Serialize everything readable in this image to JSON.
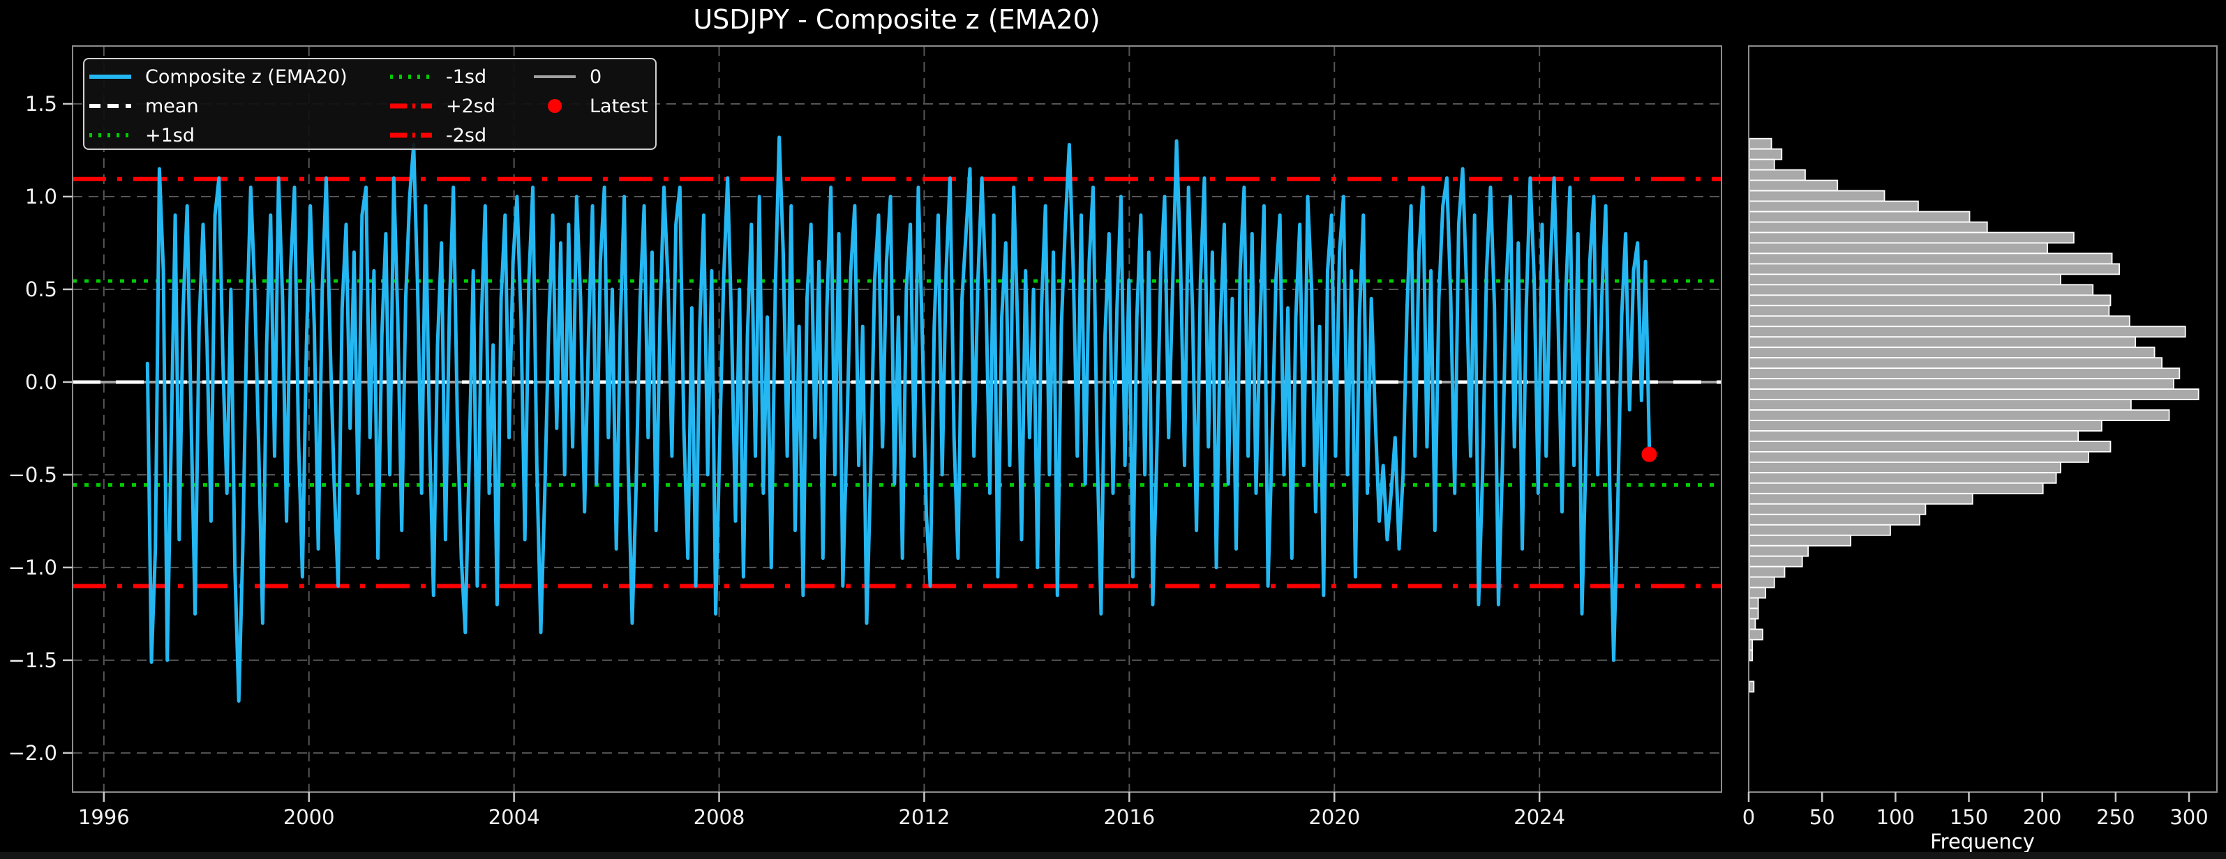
{
  "title": "USDJPY - Composite z (EMA20)",
  "chart_data": {
    "type": "line",
    "main_panel": {
      "xlim": [
        1995.39,
        2027.55
      ],
      "ylim": [
        -2.211,
        1.812
      ],
      "x_ticks": [
        1996,
        2000,
        2004,
        2008,
        2012,
        2016,
        2020,
        2024
      ],
      "x_tick_labels": [
        "1996",
        "2000",
        "2004",
        "2008",
        "2012",
        "2016",
        "2020",
        "2024"
      ],
      "y_ticks": [
        1.5,
        1.0,
        0.5,
        0.0,
        -0.5,
        -1.0,
        -1.5,
        -2.0
      ],
      "y_tick_labels": [
        "1.5",
        "1.0",
        "0.5",
        "0.0",
        "−0.5",
        "−1.0",
        "−1.5",
        "−2.0"
      ],
      "grid": true,
      "ref_lines": {
        "mean": 0.0,
        "plus_1sd": 0.545,
        "minus_1sd": -0.555,
        "plus_2sd": 1.095,
        "minus_2sd": -1.1,
        "zero": 0.0
      },
      "series": {
        "name": "Composite z (EMA20)",
        "t0": 1996.85,
        "dt": 0.0775,
        "values": [
          0.1,
          -1.51,
          -0.9,
          1.15,
          0.6,
          -1.5,
          -0.3,
          0.9,
          -0.85,
          0.4,
          0.95,
          -0.2,
          -1.25,
          0.3,
          0.85,
          0.2,
          -0.75,
          0.9,
          1.1,
          0.1,
          -0.6,
          0.5,
          -1.0,
          -1.72,
          -0.9,
          0.3,
          1.05,
          0.5,
          -0.35,
          -1.3,
          0.2,
          0.9,
          -0.4,
          1.1,
          0.45,
          -0.75,
          0.6,
          1.05,
          -0.3,
          -1.05,
          0.2,
          0.95,
          0.3,
          -0.9,
          0.5,
          1.1,
          0.2,
          -0.55,
          -1.1,
          0.4,
          0.85,
          -0.25,
          0.7,
          -0.6,
          0.9,
          1.05,
          -0.3,
          0.6,
          -0.95,
          0.25,
          0.8,
          -0.5,
          1.1,
          0.35,
          -0.8,
          0.45,
          1.0,
          1.28,
          0.5,
          -0.6,
          0.95,
          -0.3,
          -1.15,
          0.2,
          0.75,
          -0.85,
          0.4,
          1.05,
          -0.2,
          -0.95,
          -1.35,
          -0.4,
          0.6,
          -1.1,
          0.3,
          0.95,
          -0.6,
          0.2,
          -1.2,
          0.45,
          0.9,
          -0.3,
          0.65,
          1.0,
          0.35,
          -0.85,
          0.55,
          1.05,
          -0.45,
          -1.35,
          -0.6,
          0.3,
          0.9,
          -0.25,
          0.75,
          -0.5,
          0.85,
          -0.35,
          1.0,
          0.45,
          -0.7,
          0.25,
          0.95,
          -0.55,
          0.65,
          1.05,
          -0.3,
          0.5,
          -0.9,
          0.3,
          1.0,
          -0.45,
          -1.3,
          -0.55,
          0.45,
          0.95,
          -0.3,
          0.7,
          -0.8,
          0.35,
          1.05,
          0.55,
          -0.4,
          0.85,
          1.05,
          -0.25,
          -0.95,
          0.4,
          -1.1,
          0.3,
          0.9,
          -0.5,
          0.6,
          -1.25,
          -0.35,
          0.55,
          1.1,
          0.3,
          -0.75,
          0.5,
          -1.05,
          0.25,
          0.85,
          -0.4,
          1.0,
          -0.6,
          0.35,
          -1.0,
          0.5,
          1.32,
          0.7,
          -0.4,
          0.95,
          -0.8,
          0.3,
          -1.15,
          0.45,
          0.85,
          -0.3,
          0.65,
          -0.95,
          0.4,
          1.05,
          -0.5,
          0.8,
          -1.1,
          -0.3,
          0.6,
          0.95,
          -0.45,
          0.3,
          -1.3,
          -0.5,
          0.55,
          0.9,
          -0.35,
          0.65,
          1.0,
          -0.55,
          0.35,
          -0.95,
          0.5,
          0.85,
          -0.4,
          1.05,
          0.25,
          -0.7,
          -1.1,
          0.3,
          0.9,
          -0.5,
          0.6,
          1.1,
          -0.3,
          -0.95,
          0.45,
          0.8,
          1.15,
          -0.4,
          0.55,
          1.1,
          0.5,
          -0.6,
          0.9,
          -1.05,
          0.35,
          0.75,
          -0.45,
          1.05,
          0.3,
          -0.85,
          0.6,
          -0.3,
          0.5,
          -1.0,
          0.4,
          0.95,
          -0.5,
          0.7,
          -1.15,
          0.3,
          0.85,
          1.28,
          0.6,
          -0.4,
          0.9,
          -0.55,
          0.65,
          1.05,
          -0.35,
          -1.25,
          0.25,
          0.8,
          -0.6,
          0.4,
          1.0,
          -0.45,
          0.55,
          -1.05,
          0.35,
          0.9,
          -0.5,
          0.7,
          -1.2,
          -0.4,
          0.6,
          1.0,
          -0.3,
          0.5,
          1.3,
          0.65,
          -0.45,
          1.05,
          0.4,
          -0.8,
          0.55,
          1.1,
          -0.35,
          0.7,
          -1.0,
          0.3,
          0.85,
          -0.55,
          0.45,
          -0.9,
          0.6,
          1.05,
          -0.4,
          0.8,
          -0.6,
          0.3,
          0.95,
          -1.1,
          -0.35,
          0.55,
          0.9,
          -0.5,
          0.4,
          -0.95,
          0.35,
          0.85,
          -0.45,
          1.0,
          0.5,
          -0.7,
          0.3,
          -1.15,
          0.6,
          0.9,
          -0.4,
          0.7,
          1.0,
          -0.5,
          0.6,
          -1.05,
          0.35,
          0.9,
          -0.6,
          0.45,
          -0.2,
          -0.75,
          -0.45,
          -0.85,
          -0.6,
          -0.3,
          -0.9,
          -0.5,
          0.4,
          0.95,
          -0.4,
          0.7,
          1.05,
          -0.35,
          0.6,
          -0.8,
          0.45,
          0.95,
          1.1,
          0.45,
          -0.6,
          0.85,
          1.15,
          0.5,
          -0.4,
          0.9,
          -1.2,
          -0.5,
          0.6,
          1.05,
          0.4,
          -1.2,
          -0.45,
          0.55,
          1.0,
          -0.35,
          0.75,
          -0.9,
          0.4,
          1.1,
          0.55,
          -0.6,
          0.85,
          -0.4,
          0.6,
          1.1,
          0.35,
          -0.7,
          0.5,
          1.05,
          -0.45,
          0.8,
          -1.25,
          -0.4,
          0.65,
          1.0,
          -0.5,
          0.45,
          0.95,
          -0.55,
          -1.5,
          -0.7,
          0.35,
          0.8,
          -0.15,
          0.6,
          0.75,
          -0.1,
          0.65,
          -0.39
        ]
      },
      "latest": {
        "t": 2026.14,
        "z": -0.39
      }
    },
    "histogram": {
      "xlabel": "Frequency",
      "xlim": [
        0,
        319
      ],
      "x_ticks": [
        0,
        50,
        100,
        150,
        200,
        250,
        300
      ],
      "x_tick_labels": [
        "0",
        "50",
        "100",
        "150",
        "200",
        "250",
        "300"
      ],
      "z_top_edge": 1.313,
      "bin_width": 0.0563,
      "frequencies": [
        15,
        22,
        17,
        38,
        60,
        92,
        115,
        150,
        162,
        221,
        203,
        247,
        252,
        212,
        234,
        246,
        245,
        259,
        297,
        263,
        276,
        281,
        293,
        289,
        306,
        260,
        286,
        240,
        224,
        246,
        231,
        212,
        209,
        200,
        152,
        120,
        116,
        96,
        69,
        40,
        36,
        24,
        17,
        11,
        6,
        6,
        4,
        9,
        2,
        2,
        0,
        0,
        3
      ]
    },
    "legend": {
      "entries": [
        {
          "label": "Composite z (EMA20)",
          "color": "#24b7f2",
          "dash": "solid",
          "lw": 6
        },
        {
          "label": "mean",
          "color": "#ffffff",
          "dash": "dashed",
          "lw": 6
        },
        {
          "label": "+1sd",
          "color": "#00cc00",
          "dash": "dotted",
          "lw": 6
        },
        {
          "label": "-1sd",
          "color": "#00cc00",
          "dash": "dotted",
          "lw": 6
        },
        {
          "label": "+2sd",
          "color": "#ff0000",
          "dash": "dashdot",
          "lw": 7
        },
        {
          "label": "-2sd",
          "color": "#ff0000",
          "dash": "dashdot",
          "lw": 7
        },
        {
          "label": "0",
          "color": "#a0a0a0",
          "dash": "solid",
          "lw": 4
        },
        {
          "label": "Latest",
          "color": "#ff0000",
          "dash": "marker"
        }
      ]
    },
    "colors": {
      "background": "#000000",
      "series": "#24b7f2",
      "mean": "#ffffff",
      "sd1": "#00cc00",
      "sd2": "#ff0000",
      "zero_line": "#a0a0a0",
      "latest_dot": "#ff0000",
      "bar_fill": "#a9a9a9",
      "bar_edge": "#ffffff",
      "grid": "#555555",
      "spine": "#8c8c8c",
      "tick": "#c8c8c8",
      "text": "#f2f2f2",
      "footer": "#151515"
    }
  }
}
